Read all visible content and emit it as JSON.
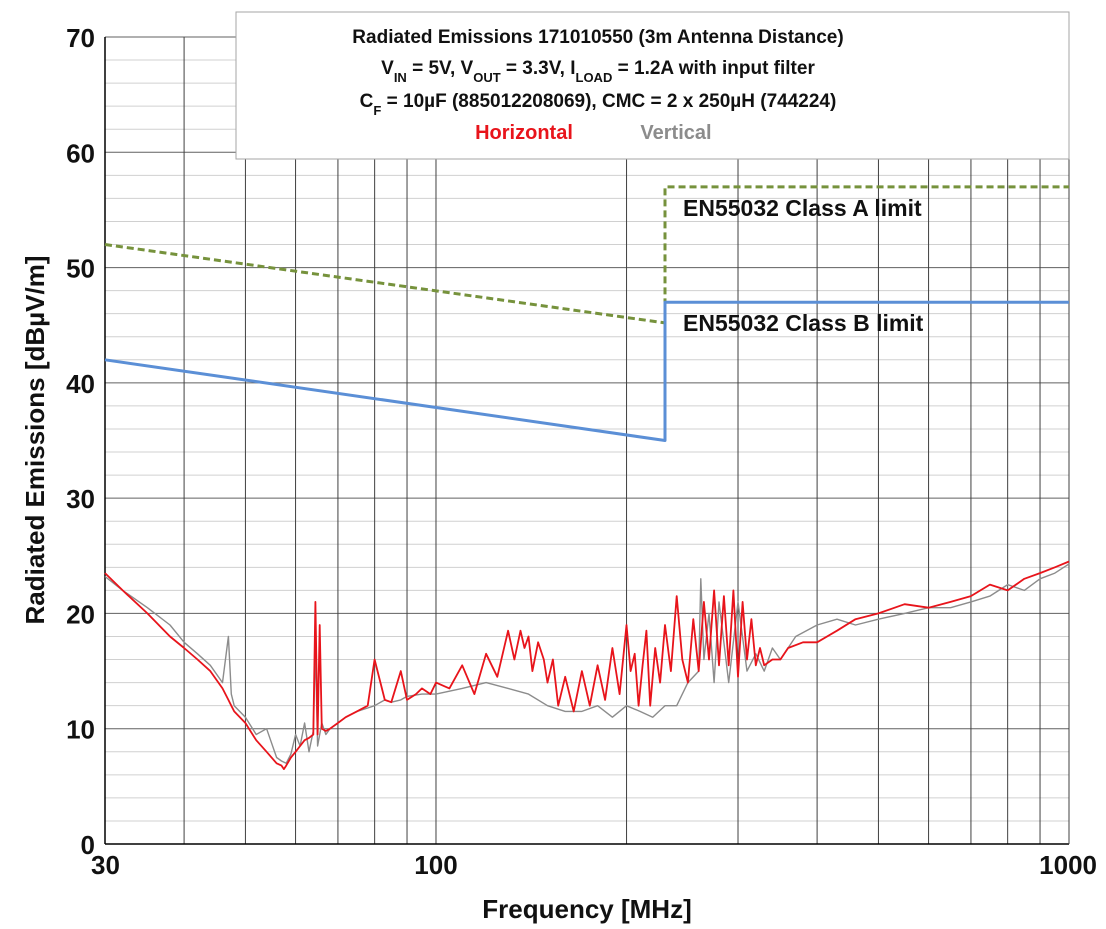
{
  "chart_data": {
    "type": "line",
    "title": {
      "line1": "Radiated Emissions 171010550 (3m Antenna Distance)",
      "line2": {
        "a": "V",
        "a_sub": "IN",
        "b": " = 5V, V",
        "b_sub": "OUT",
        "c": " = 3.3V, I",
        "c_sub": "LOAD",
        "d": " = 1.2A with input filter"
      },
      "line3": {
        "a": "C",
        "a_sub": "F",
        "b": " = 10µF (885012208069), CMC = 2 x 250µH (744224)"
      }
    },
    "xlabel": "Frequency [MHz]",
    "ylabel": "Radiated Emissions [dBµV/m]",
    "x_scale": "log",
    "xlim": [
      30,
      1000
    ],
    "ylim": [
      0,
      70
    ],
    "x_tick_labels": [
      "30",
      "100",
      "1000"
    ],
    "y_tick_labels": [
      "0",
      "10",
      "20",
      "30",
      "40",
      "50",
      "60",
      "70"
    ],
    "grid": true,
    "legend_position": "top-center",
    "colors": {
      "horizontal": "#e8141b",
      "vertical": "#8c8c8c",
      "class_a": "#76923c",
      "class_b": "#5b8fd6"
    },
    "series": [
      {
        "name": "Horizontal",
        "color": "#e8141b",
        "x": [
          30,
          32,
          35,
          38,
          40,
          42,
          44,
          46,
          47,
          47.5,
          48,
          50,
          52,
          54,
          56,
          57,
          57.5,
          58,
          59,
          60,
          61,
          62,
          63,
          64,
          64.5,
          65,
          65.5,
          66,
          67,
          68,
          70,
          72,
          75,
          78,
          80,
          83,
          85,
          88,
          90,
          93,
          95,
          98,
          100,
          105,
          110,
          115,
          120,
          125,
          130,
          133,
          136,
          138,
          140,
          142,
          145,
          148,
          150,
          153,
          156,
          160,
          165,
          170,
          175,
          180,
          185,
          190,
          195,
          200,
          203,
          206,
          209,
          212,
          215,
          218,
          222,
          226,
          230,
          235,
          240,
          245,
          250,
          255,
          260,
          265,
          270,
          275,
          280,
          285,
          290,
          295,
          300,
          305,
          310,
          315,
          320,
          325,
          330,
          340,
          350,
          360,
          380,
          400,
          430,
          460,
          500,
          550,
          600,
          650,
          700,
          750,
          800,
          850,
          900,
          950,
          1000
        ],
        "y": [
          23.5,
          22,
          20,
          18,
          17,
          16,
          15,
          13.5,
          12.5,
          12,
          11.5,
          10.5,
          9,
          8,
          7,
          6.8,
          6.5,
          6.8,
          7.5,
          8,
          8.5,
          9,
          9.2,
          9.5,
          21,
          9.5,
          19,
          10,
          9.8,
          10,
          10.5,
          11,
          11.5,
          12,
          16,
          12.5,
          12.3,
          15,
          12.5,
          13,
          13.5,
          13,
          14,
          13.5,
          15.5,
          13,
          16.5,
          14.5,
          18.5,
          16,
          18.5,
          17,
          18,
          15,
          17.5,
          16,
          14,
          16,
          12,
          14.5,
          11.5,
          15,
          12,
          15.5,
          12.5,
          17,
          13,
          19,
          15,
          16.5,
          12,
          15.5,
          18.5,
          12,
          17,
          14,
          19,
          15,
          21.5,
          16,
          14,
          19.5,
          15,
          21,
          16,
          22,
          15.5,
          21.5,
          15.5,
          22,
          14.5,
          21,
          16,
          19.5,
          15.5,
          17,
          15.5,
          16,
          16,
          17,
          17.5,
          17.5,
          18.5,
          19.5,
          20,
          20.8,
          20.5,
          21,
          21.5,
          22.5,
          22,
          23,
          23.5,
          24,
          24.5
        ]
      },
      {
        "name": "Vertical",
        "color": "#8c8c8c",
        "x": [
          30,
          32,
          35,
          38,
          40,
          42,
          44,
          46,
          47,
          47.5,
          48,
          50,
          52,
          54,
          56,
          57,
          58,
          59,
          60,
          61,
          62,
          63,
          64,
          64.5,
          65,
          66,
          67,
          68,
          70,
          72,
          75,
          78,
          80,
          83,
          85,
          88,
          90,
          95,
          100,
          110,
          120,
          130,
          140,
          150,
          160,
          170,
          180,
          190,
          200,
          210,
          220,
          230,
          240,
          250,
          260,
          262,
          265,
          270,
          275,
          280,
          290,
          300,
          310,
          320,
          330,
          340,
          350,
          370,
          400,
          430,
          460,
          500,
          550,
          600,
          650,
          700,
          750,
          800,
          850,
          900,
          950,
          1000
        ],
        "y": [
          23.2,
          22,
          20.5,
          19,
          17.5,
          16.5,
          15.5,
          14,
          18,
          13,
          12,
          11,
          9.5,
          10,
          7.5,
          7.2,
          7,
          7.8,
          9.5,
          8.5,
          10.5,
          8,
          9.8,
          17,
          8.5,
          10.5,
          9.5,
          10,
          10.5,
          11,
          11.5,
          11.8,
          12,
          12.5,
          12.3,
          12.5,
          12.8,
          13,
          13,
          13.5,
          14,
          13.5,
          13,
          12,
          11.5,
          11.5,
          12,
          11,
          12,
          11.5,
          11,
          12,
          12,
          14,
          15,
          23,
          16,
          20,
          14,
          21,
          14,
          21,
          15,
          16.5,
          15,
          17,
          16,
          18,
          19,
          19.5,
          19,
          19.5,
          20,
          20.5,
          20.5,
          21,
          21.5,
          22.5,
          22,
          23,
          23.5,
          24.3
        ]
      },
      {
        "name": "EN55032 Class A limit",
        "color": "#76923c",
        "style": "dashed",
        "x": [
          30,
          230,
          230,
          1000
        ],
        "y": [
          52,
          45.2,
          57,
          57
        ]
      },
      {
        "name": "EN55032 Class B limit",
        "color": "#5b8fd6",
        "style": "solid",
        "x": [
          30,
          230,
          230,
          1000
        ],
        "y": [
          42,
          35,
          47,
          47
        ]
      }
    ]
  }
}
